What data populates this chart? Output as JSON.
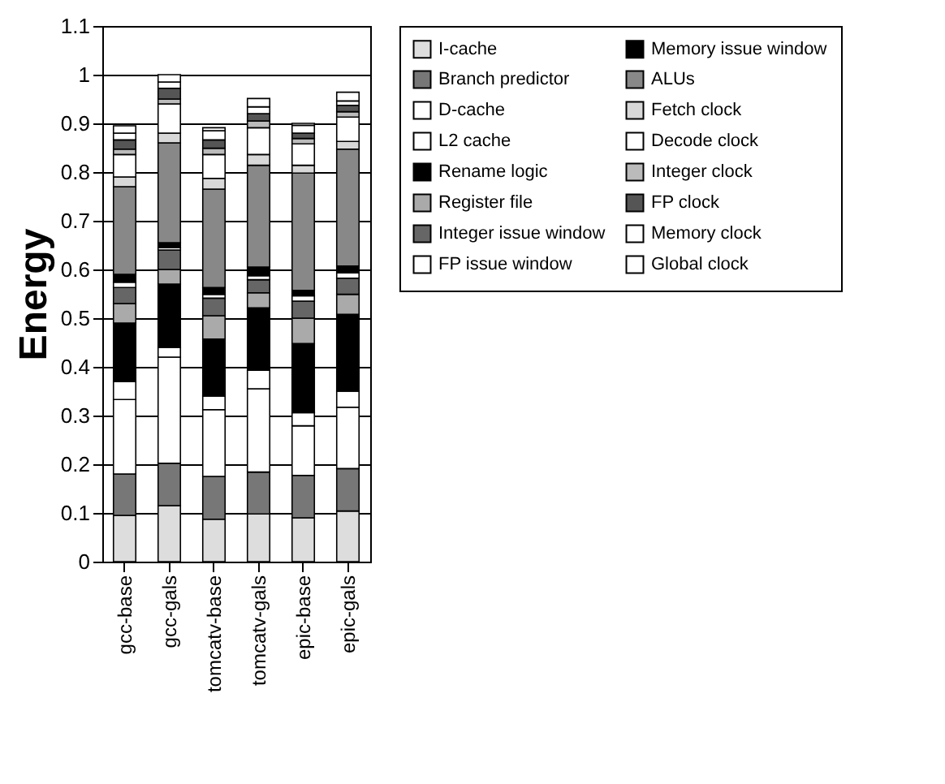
{
  "chart_data": {
    "type": "bar",
    "stacked": true,
    "ylabel": "Energy",
    "categories": [
      "gcc-base",
      "gcc-gals",
      "tomcatv-base",
      "tomcatv-gals",
      "epic-base",
      "epic-gals"
    ],
    "ylim": [
      0,
      1.1
    ],
    "yticks": [
      0,
      0.1,
      0.2,
      0.3,
      0.4,
      0.5,
      0.6,
      0.7,
      0.8,
      0.9,
      1,
      1.1
    ],
    "grid": "y",
    "legend": "right",
    "series": [
      {
        "name": "I-cache",
        "color": "#dddddd",
        "values": [
          0.095,
          0.115,
          0.087,
          0.098,
          0.09,
          0.104
        ]
      },
      {
        "name": "Branch predictor",
        "color": "#777777",
        "values": [
          0.085,
          0.087,
          0.088,
          0.086,
          0.087,
          0.087
        ]
      },
      {
        "name": "D-cache",
        "color": "#ffffff",
        "values": [
          0.153,
          0.218,
          0.137,
          0.171,
          0.102,
          0.126
        ]
      },
      {
        "name": "L2 cache",
        "color": "#ffffff",
        "values": [
          0.037,
          0.02,
          0.028,
          0.038,
          0.027,
          0.033
        ]
      },
      {
        "name": "Rename logic",
        "color": "#000000",
        "values": [
          0.12,
          0.13,
          0.117,
          0.128,
          0.142,
          0.158
        ]
      },
      {
        "name": "Register file",
        "color": "#aaaaaa",
        "values": [
          0.04,
          0.03,
          0.048,
          0.031,
          0.052,
          0.041
        ]
      },
      {
        "name": "Integer issue window",
        "color": "#666666",
        "values": [
          0.033,
          0.04,
          0.036,
          0.027,
          0.035,
          0.033
        ]
      },
      {
        "name": "FP issue window",
        "color": "#ffffff",
        "values": [
          0.011,
          0.005,
          0.008,
          0.008,
          0.011,
          0.011
        ]
      },
      {
        "name": "Memory issue window",
        "color": "#000000",
        "values": [
          0.016,
          0.01,
          0.014,
          0.018,
          0.011,
          0.014
        ]
      },
      {
        "name": "ALUs",
        "color": "#888888",
        "values": [
          0.18,
          0.205,
          0.202,
          0.209,
          0.241,
          0.24
        ]
      },
      {
        "name": "Fetch clock",
        "color": "#d8d8d8",
        "values": [
          0.02,
          0.02,
          0.022,
          0.022,
          0.016,
          0.016
        ]
      },
      {
        "name": "Decode clock",
        "color": "#ffffff",
        "values": [
          0.046,
          0.06,
          0.049,
          0.055,
          0.044,
          0.05
        ]
      },
      {
        "name": "Integer clock",
        "color": "#bbbbbb",
        "values": [
          0.011,
          0.01,
          0.013,
          0.014,
          0.011,
          0.011
        ]
      },
      {
        "name": "FP clock",
        "color": "#555555",
        "values": [
          0.019,
          0.022,
          0.017,
          0.015,
          0.011,
          0.013
        ]
      },
      {
        "name": "Memory clock",
        "color": "#ffffff",
        "values": [
          0.014,
          0.013,
          0.019,
          0.014,
          0.016,
          0.009
        ]
      },
      {
        "name": "Global clock",
        "color": "#ffffff",
        "values": [
          0.015,
          0.015,
          0.006,
          0.017,
          0.004,
          0.018
        ]
      }
    ]
  }
}
